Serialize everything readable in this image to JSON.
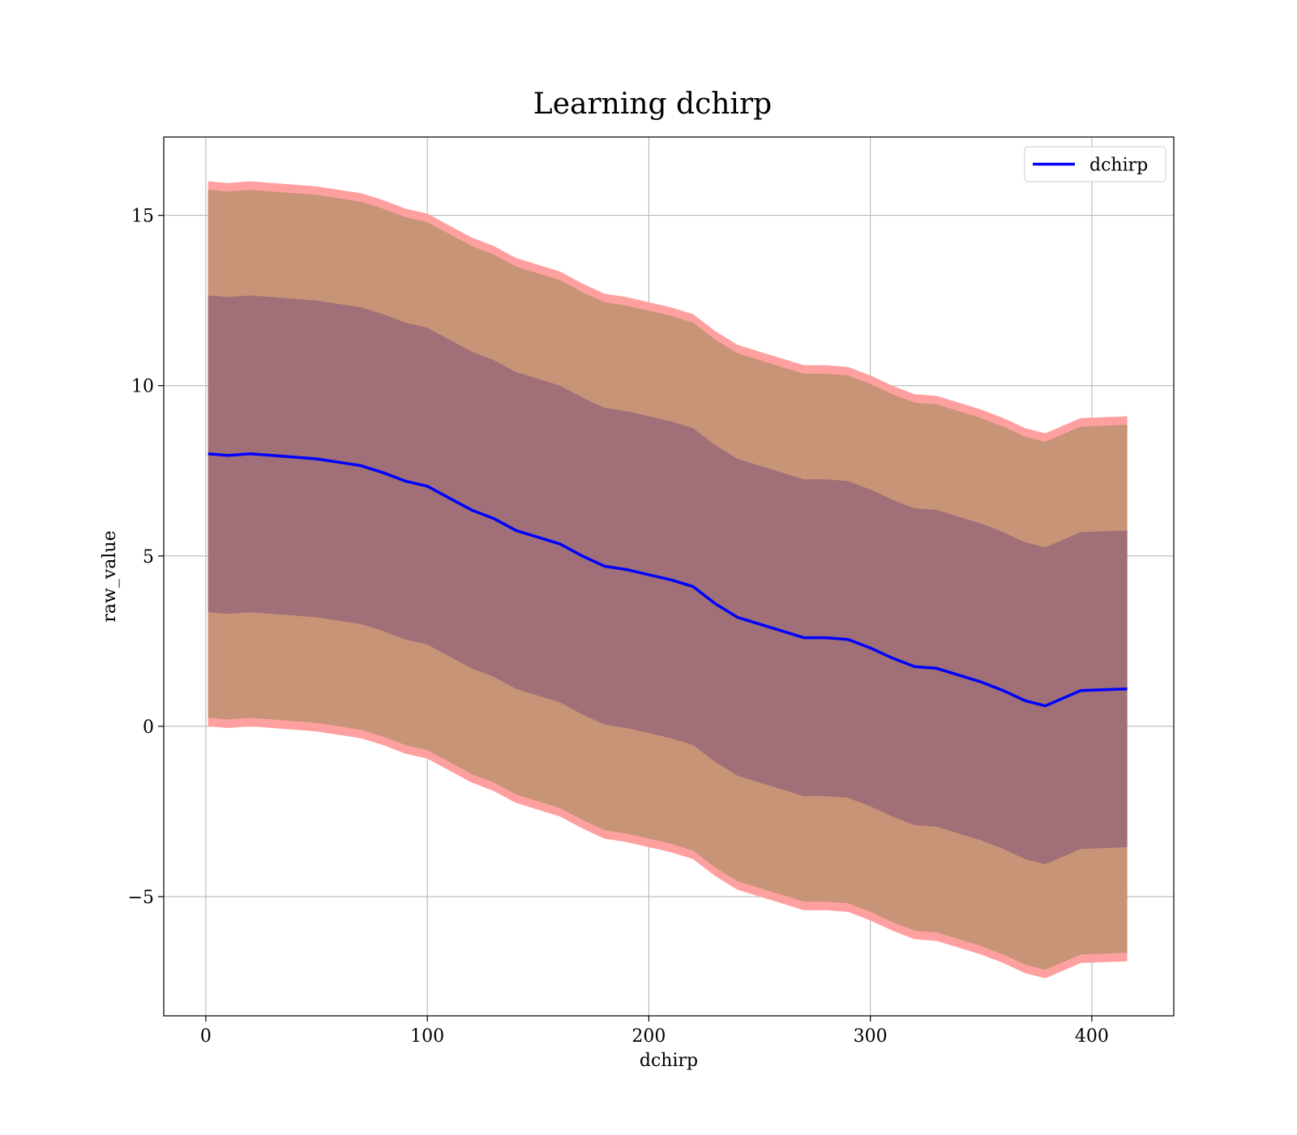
{
  "chart_data": {
    "type": "line",
    "title": "Learning dchirp",
    "xlabel": "dchirp",
    "ylabel": "raw_value",
    "xlim": [
      -19,
      437
    ],
    "ylim": [
      -8.5,
      17.3
    ],
    "xticks": [
      0,
      100,
      200,
      300,
      400
    ],
    "xtick_labels": [
      "0",
      "100",
      "200",
      "300",
      "400"
    ],
    "yticks": [
      -5,
      0,
      5,
      10,
      15
    ],
    "ytick_labels": [
      "−5",
      "0",
      "5",
      "10",
      "15"
    ],
    "grid": true,
    "legend": {
      "placement": "top-right",
      "entries": [
        "dchirp"
      ]
    },
    "colors": {
      "line": "#0000ff",
      "outer_band": "#ffa0a0",
      "middle_band": "#c79478",
      "inner_band": "#a06f78"
    },
    "series": [
      {
        "name": "dchirp",
        "x": [
          1,
          10,
          20,
          30,
          40,
          50,
          60,
          70,
          80,
          90,
          100,
          110,
          120,
          130,
          140,
          150,
          160,
          170,
          180,
          190,
          200,
          210,
          220,
          230,
          240,
          250,
          260,
          270,
          280,
          290,
          300,
          310,
          320,
          330,
          340,
          350,
          360,
          370,
          379,
          395,
          416
        ],
        "y": [
          8.0,
          7.95,
          8.0,
          7.95,
          7.9,
          7.85,
          7.75,
          7.65,
          7.45,
          7.2,
          7.05,
          6.7,
          6.35,
          6.1,
          5.75,
          5.55,
          5.35,
          5.0,
          4.7,
          4.6,
          4.45,
          4.3,
          4.1,
          3.6,
          3.2,
          3.0,
          2.8,
          2.6,
          2.6,
          2.55,
          2.3,
          2.0,
          1.75,
          1.7,
          1.5,
          1.3,
          1.05,
          0.75,
          0.6,
          1.05,
          1.1
        ]
      }
    ],
    "bands": [
      {
        "level": "outer",
        "delta_upper": 8.0,
        "delta_lower": 8.0
      },
      {
        "level": "middle",
        "delta_upper": 7.75,
        "delta_lower": 7.75
      },
      {
        "level": "inner",
        "delta_upper": 4.65,
        "delta_lower": 4.65
      }
    ]
  }
}
